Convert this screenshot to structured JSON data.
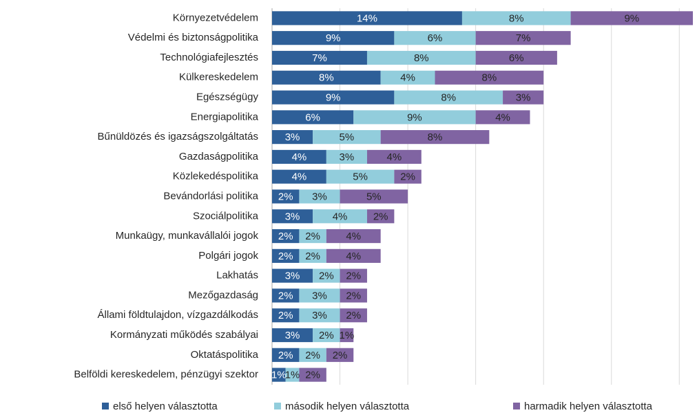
{
  "chart_data": {
    "type": "stacked-barh",
    "categories": [
      "Környezetvédelem",
      "Védelmi és biztonságpolitika",
      "Technológiafejlesztés",
      "Külkereskedelem",
      "Egészségügy",
      "Energiapolitika",
      "Bűnüldözés és igazságszolgáltatás",
      "Gazdaságpolitika",
      "Közlekedéspolitika",
      "Bevándorlási politika",
      "Szociálpolitika",
      "Munkaügy, munkavállalói jogok",
      "Polgári jogok",
      "Lakhatás",
      "Mezőgazdaság",
      "Állami földtulajdon, vízgazdálkodás",
      "Kormányzati működés szabályai",
      "Oktatáspolitika",
      "Belföldi kereskedelem, pénzügyi szektor"
    ],
    "series": [
      {
        "name": "első helyen választotta",
        "color": "#2e5f98",
        "label_color": "#ffffff",
        "values": [
          14,
          9,
          7,
          8,
          9,
          6,
          3,
          4,
          4,
          2,
          3,
          2,
          2,
          3,
          2,
          2,
          3,
          2,
          1
        ],
        "value_labels": [
          "14%",
          "9%",
          "7%",
          "8%",
          "9%",
          "6%",
          "3%",
          "4%",
          "4%",
          "2%",
          "3%",
          "2%",
          "2%",
          "3%",
          "2%",
          "2%",
          "3%",
          "2%",
          "1%"
        ]
      },
      {
        "name": "második helyen választotta",
        "color": "#92cddc",
        "label_color": "#262626",
        "values": [
          8,
          6,
          8,
          4,
          8,
          9,
          5,
          3,
          5,
          3,
          4,
          2,
          2,
          2,
          3,
          3,
          2,
          2,
          1
        ],
        "value_labels": [
          "8%",
          "6%",
          "8%",
          "4%",
          "8%",
          "9%",
          "5%",
          "3%",
          "5%",
          "3%",
          "4%",
          "2%",
          "2%",
          "2%",
          "3%",
          "3%",
          "2%",
          "2%",
          "1%"
        ]
      },
      {
        "name": "harmadik helyen választotta",
        "color": "#8064a2",
        "label_color": "#262626",
        "values": [
          9,
          7,
          6,
          8,
          3,
          4,
          8,
          4,
          2,
          5,
          2,
          4,
          4,
          2,
          2,
          2,
          1,
          2,
          2
        ],
        "value_labels": [
          "9%",
          "7%",
          "6%",
          "8%",
          "3%",
          "4%",
          "8%",
          "4%",
          "2%",
          "5%",
          "2%",
          "4%",
          "4%",
          "2%",
          "2%",
          "2%",
          "1%",
          "2%",
          "2%"
        ]
      }
    ],
    "xlim": [
      0,
      31
    ],
    "xticks": [
      0,
      5,
      10,
      15,
      20,
      25,
      30
    ],
    "grid": true,
    "legend": "bottom"
  }
}
